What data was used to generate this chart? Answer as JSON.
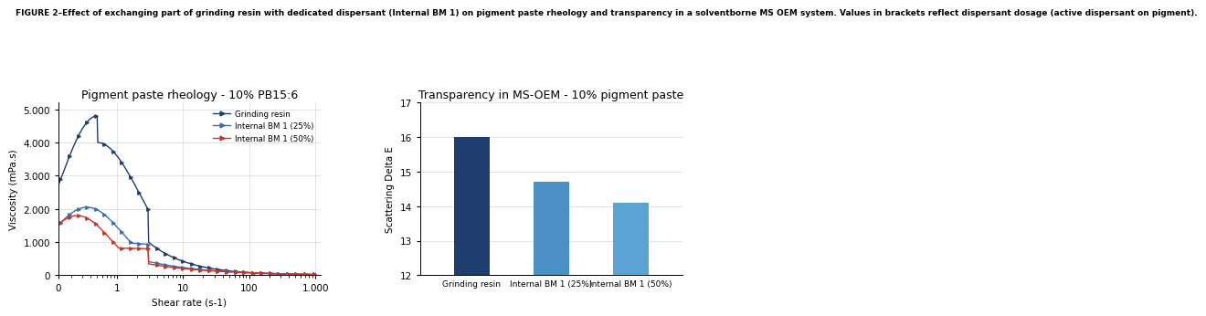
{
  "figure_caption_bold": "FIGURE 2–Effect of exchanging part of grinding resin with dedicated dispersant (Internal BM 1) on pigment paste rheology and transparency in a solventborne MS OEM system. Values in brackets reflect dispersant dosage (active dispersant on pigment).",
  "left_title": "Pigment paste rheology - 10% PB15:6",
  "left_xlabel": "Shear rate (s-1)",
  "left_ylabel": "Viscosity (mPa.s)",
  "left_ylim": [
    0,
    5200
  ],
  "left_yticks": [
    0,
    1000,
    2000,
    3000,
    4000,
    5000
  ],
  "left_ytick_labels": [
    "0",
    "1.000",
    "2.000",
    "3.000",
    "4.000",
    "5.000"
  ],
  "left_xtick_labels": [
    "0",
    "1",
    "10",
    "100",
    "1.000"
  ],
  "left_xtick_positions": [
    0.13,
    1,
    10,
    100,
    1000
  ],
  "legend_labels": [
    "Grinding resin",
    "Internal BM 1 (25%)",
    "Internal BM 1 (50%)"
  ],
  "line_colors": [
    "#1f3d6e",
    "#3a6fad",
    "#c0392b"
  ],
  "right_title": "Transparency in MS-OEM - 10% pigment paste",
  "right_ylabel": "Scattering Delta E",
  "right_ylim": [
    12,
    17
  ],
  "right_yticks": [
    12,
    13,
    14,
    15,
    16,
    17
  ],
  "bar_categories": [
    "Grinding resin",
    "Internal BM 1 (25%)",
    "Internal BM 1 (50%)"
  ],
  "bar_values": [
    16.0,
    14.7,
    14.1
  ],
  "bar_colors": [
    "#1f3d6e",
    "#4a90c4",
    "#5ba3d5"
  ],
  "background_color": "#ffffff",
  "caption_fontsize": 6.5,
  "title_fontsize": 9.0,
  "axis_fontsize": 7.5,
  "tick_fontsize": 7.5
}
